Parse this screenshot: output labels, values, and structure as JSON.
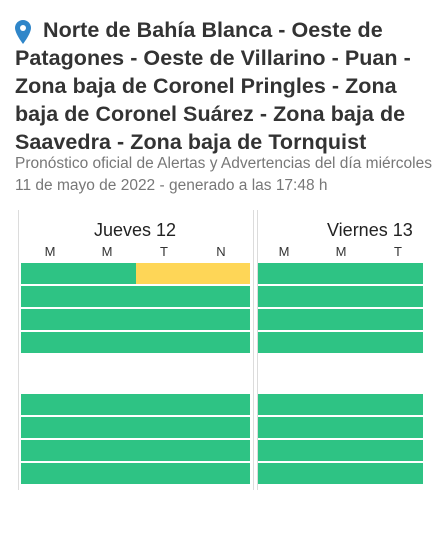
{
  "header": {
    "title": "Norte de Bahía Blanca - Oeste de Patagones - Oeste de Villarino - Puan - Zona baja de Coronel Pringles - Zona baja de Coronel Suárez - Zona baja de Saavedra - Zona baja de Tornquist",
    "subtitle": "Pronóstico oficial de Alertas y Advertencias del día miércoles 11 de mayo de 2022 - generado a las 17:48 h"
  },
  "days": [
    {
      "label": "Jueves 12",
      "periods": [
        "M",
        "M",
        "T",
        "N"
      ]
    },
    {
      "label": "Viernes 13",
      "periods": [
        "M",
        "M",
        "T"
      ]
    }
  ],
  "colors": {
    "green": "#2ec384",
    "yellow": "#fed657",
    "pin": "#2f86c9"
  },
  "grid": {
    "day1": [
      [
        "green",
        "green",
        "yellow",
        "yellow"
      ],
      [
        "green",
        "green",
        "green",
        "green"
      ],
      [
        "green",
        "green",
        "green",
        "green"
      ],
      [
        "green",
        "green",
        "green",
        "green"
      ],
      [
        "green",
        "green",
        "green",
        "green"
      ],
      [
        "green",
        "green",
        "green",
        "green"
      ],
      [
        "green",
        "green",
        "green",
        "green"
      ],
      [
        "green",
        "green",
        "green",
        "green"
      ]
    ],
    "day2": [
      [
        "green"
      ],
      [
        "green"
      ],
      [
        "green"
      ],
      [
        "green"
      ],
      [
        "green"
      ],
      [
        "green"
      ],
      [
        "green"
      ],
      [
        "green"
      ]
    ]
  }
}
